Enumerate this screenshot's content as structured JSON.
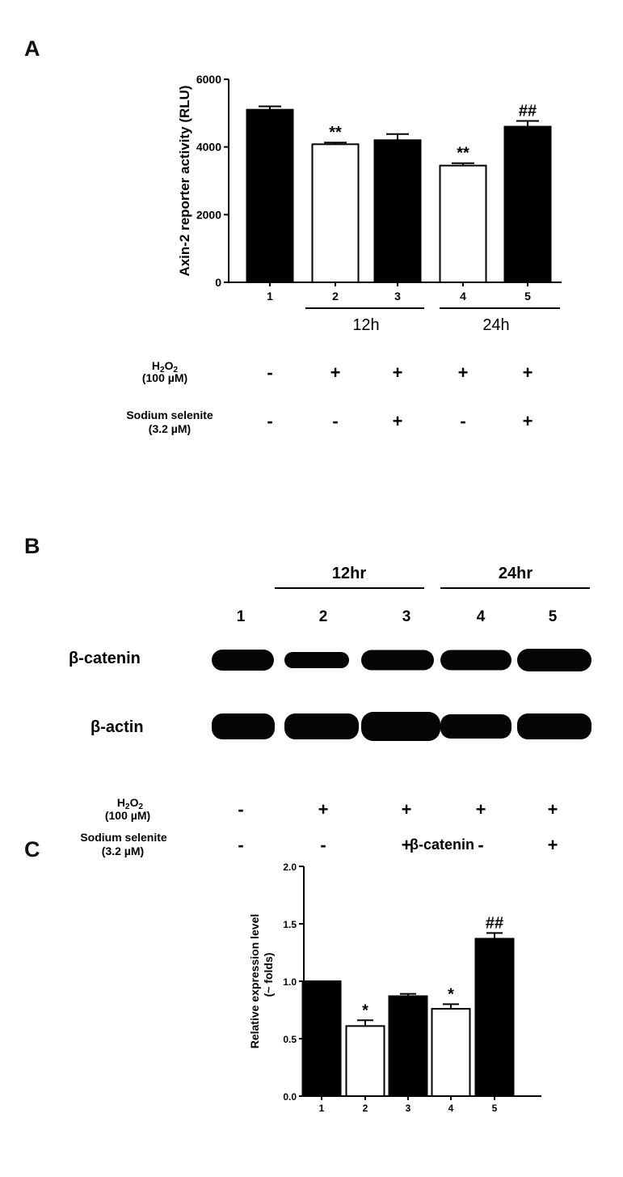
{
  "panels": {
    "a": "A",
    "b": "B",
    "c": "C"
  },
  "panel_a_conditions": [
    {
      "label": "H2O2",
      "label_main": "H",
      "sub1": "2",
      "mid": "O",
      "sub2": "2",
      "dose": "(100 µM)",
      "signs": [
        "-",
        "+",
        "+",
        "+",
        "+"
      ]
    },
    {
      "label": "Sodium selenite",
      "dose": "(3.2 µM)",
      "signs": [
        "-",
        "-",
        "+",
        "-",
        "+"
      ]
    }
  ],
  "panel_a_groups": [
    "12h",
    "24h"
  ],
  "blot": {
    "groups": [
      "12hr",
      "24hr"
    ],
    "lanes": [
      "1",
      "2",
      "3",
      "4",
      "5"
    ],
    "rows": [
      "β-catenin",
      "β-actin"
    ],
    "conditions": [
      {
        "label": "H2O2",
        "dose": "(100 µM)",
        "signs": [
          "-",
          "+",
          "+",
          "+",
          "+"
        ]
      },
      {
        "label": "Sodium selenite",
        "dose": "(3.2 µM)",
        "signs": [
          "-",
          "-",
          "+",
          "-",
          "+"
        ]
      }
    ]
  },
  "colors": {
    "filled": "#000000",
    "open": "#ffffff"
  },
  "chart_data": [
    {
      "type": "bar",
      "categories": [
        "1",
        "2",
        "3",
        "4",
        "5"
      ],
      "values": [
        5100,
        4080,
        4200,
        3450,
        4600
      ],
      "errors": [
        100,
        50,
        180,
        70,
        170
      ],
      "fill": [
        "filled",
        "open",
        "filled",
        "open",
        "filled"
      ],
      "annotations": [
        "",
        "**",
        "",
        "**",
        "##"
      ],
      "title": "",
      "xlabel": "",
      "ylabel": "Axin-2 reporter activity (RLU)",
      "ylim": [
        0,
        6000
      ],
      "yticks": [
        0,
        2000,
        4000,
        6000
      ],
      "ytick_labels": [
        "0",
        "2000",
        "4000",
        "6000"
      ]
    },
    {
      "type": "bar",
      "categories": [
        "1",
        "2",
        "3",
        "4",
        "5"
      ],
      "values": [
        1.0,
        0.61,
        0.87,
        0.76,
        1.37
      ],
      "errors": [
        0.0,
        0.05,
        0.02,
        0.04,
        0.05
      ],
      "fill": [
        "filled",
        "open",
        "filled",
        "open",
        "filled"
      ],
      "annotations": [
        "",
        "*",
        "",
        "*",
        "##"
      ],
      "title": "β-catenin",
      "xlabel": "",
      "ylabel": "Relative expression level",
      "ylabel2": "(~ folds)",
      "ylim": [
        0,
        2.0
      ],
      "yticks": [
        0,
        0.5,
        1.0,
        1.5,
        2.0
      ],
      "ytick_labels": [
        "0.0",
        "0.5",
        "1.0",
        "1.5",
        "2.0"
      ]
    }
  ]
}
